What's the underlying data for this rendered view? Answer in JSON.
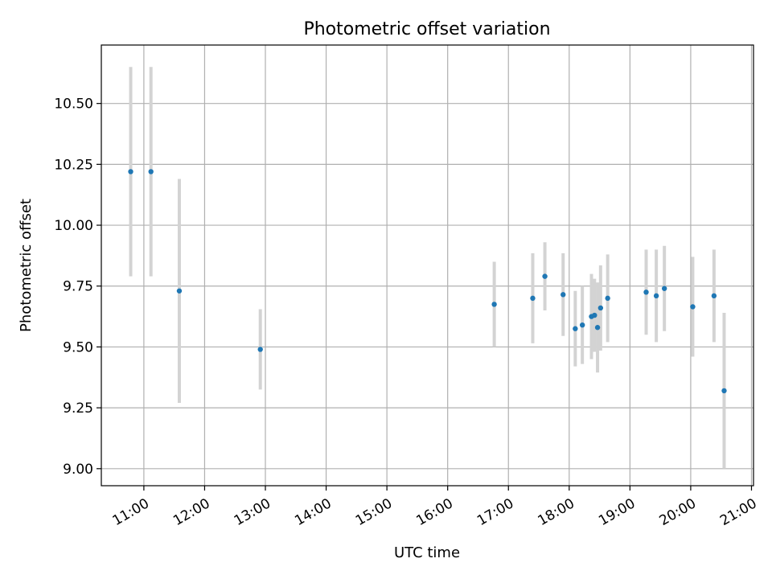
{
  "chart_data": {
    "type": "scatter",
    "title": "Photometric offset variation",
    "xlabel": "UTC time",
    "ylabel": "Photometric offset",
    "grid": true,
    "xlim": [
      "10:18",
      "21:02"
    ],
    "ylim": [
      8.93,
      10.74
    ],
    "x_ticks": [
      "11:00",
      "12:00",
      "13:00",
      "14:00",
      "15:00",
      "16:00",
      "17:00",
      "18:00",
      "19:00",
      "20:00",
      "21:00"
    ],
    "y_ticks": [
      "9.00",
      "9.25",
      "9.50",
      "9.75",
      "10.00",
      "10.25",
      "10.50"
    ],
    "marker_color": "#1f77b4",
    "errorbar_color": "#d3d3d3",
    "points": [
      {
        "time": "10:47",
        "y": 10.22,
        "yerr": 0.43
      },
      {
        "time": "11:07",
        "y": 10.22,
        "yerr": 0.43
      },
      {
        "time": "11:35",
        "y": 9.73,
        "yerr": 0.46
      },
      {
        "time": "12:55",
        "y": 9.49,
        "yerr": 0.165
      },
      {
        "time": "16:46",
        "y": 9.675,
        "yerr": 0.175
      },
      {
        "time": "17:24",
        "y": 9.7,
        "yerr": 0.185
      },
      {
        "time": "17:36",
        "y": 9.79,
        "yerr": 0.14
      },
      {
        "time": "17:54",
        "y": 9.715,
        "yerr": 0.17
      },
      {
        "time": "18:06",
        "y": 9.575,
        "yerr": 0.155
      },
      {
        "time": "18:13",
        "y": 9.59,
        "yerr": 0.16
      },
      {
        "time": "18:22",
        "y": 9.625,
        "yerr": 0.175
      },
      {
        "time": "18:25",
        "y": 9.63,
        "yerr": 0.15
      },
      {
        "time": "18:28",
        "y": 9.58,
        "yerr": 0.185
      },
      {
        "time": "18:31",
        "y": 9.66,
        "yerr": 0.175
      },
      {
        "time": "18:38",
        "y": 9.7,
        "yerr": 0.18
      },
      {
        "time": "19:16",
        "y": 9.725,
        "yerr": 0.175
      },
      {
        "time": "19:26",
        "y": 9.71,
        "yerr": 0.19
      },
      {
        "time": "19:34",
        "y": 9.74,
        "yerr": 0.175
      },
      {
        "time": "20:02",
        "y": 9.665,
        "yerr": 0.205
      },
      {
        "time": "20:23",
        "y": 9.71,
        "yerr": 0.19
      },
      {
        "time": "20:33",
        "y": 9.32,
        "yerr": 0.32
      }
    ]
  }
}
